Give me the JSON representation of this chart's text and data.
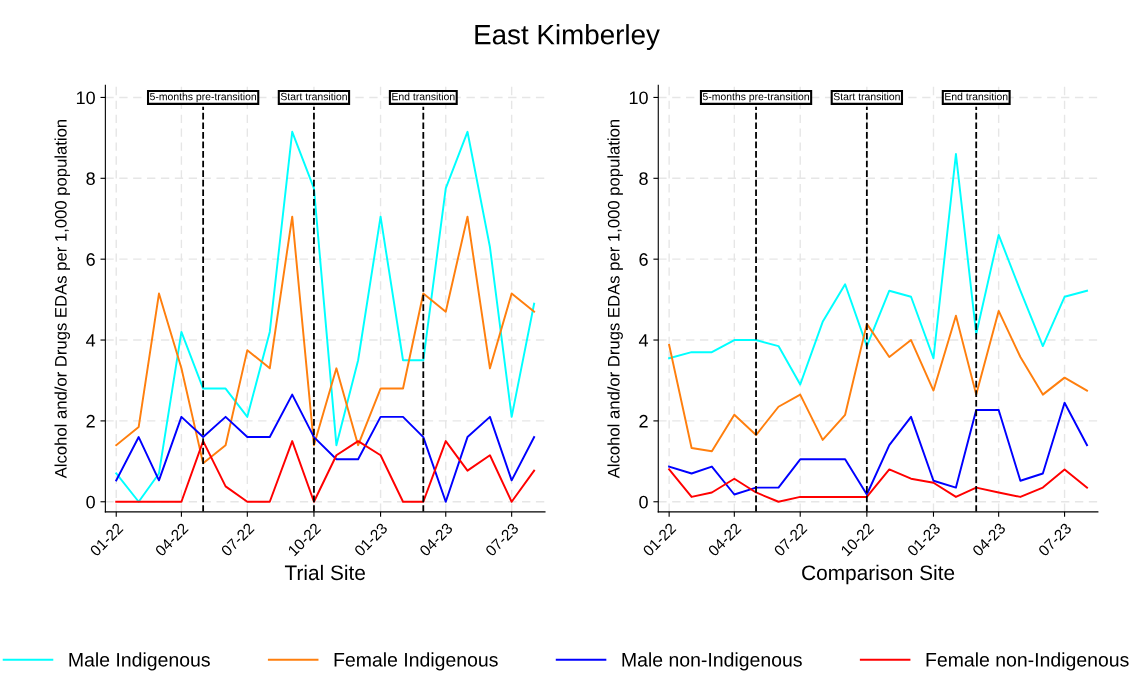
{
  "chart_data": [
    {
      "type": "line",
      "title": "East Kimberley",
      "xlabel": "Trial Site",
      "ylabel": "Alcohol and/or Drugs EDAs per 1,000 population",
      "x": [
        "2022-01",
        "2022-02",
        "2022-03",
        "2022-04",
        "2022-05",
        "2022-06",
        "2022-07",
        "2022-08",
        "2022-09",
        "2022-10",
        "2022-11",
        "2022-12",
        "2023-01",
        "2023-02",
        "2023-03",
        "2023-04",
        "2023-05",
        "2023-06",
        "2023-07",
        "2023-08"
      ],
      "series": [
        {
          "name": "Male Indigenous",
          "color": "#00ffff",
          "values": [
            0.7,
            0,
            0.7,
            4.2,
            2.8,
            2.8,
            2.1,
            4.2,
            9.15,
            7.75,
            1.4,
            3.5,
            7.05,
            3.5,
            3.5,
            7.75,
            9.15,
            6.3,
            2.1,
            4.9
          ]
        },
        {
          "name": "Female Indigenous",
          "color": "#ff7f0e",
          "values": [
            1.4,
            1.85,
            5.15,
            3.3,
            0.95,
            1.4,
            3.75,
            3.3,
            7.05,
            1.4,
            3.3,
            1.4,
            2.8,
            2.8,
            5.15,
            4.7,
            7.05,
            3.3,
            5.15,
            4.7
          ]
        },
        {
          "name": "Male non-Indigenous",
          "color": "#0000ff",
          "values": [
            0.53,
            1.6,
            0.53,
            2.1,
            1.6,
            2.1,
            1.6,
            1.6,
            2.65,
            1.6,
            1.05,
            1.05,
            2.1,
            2.1,
            1.6,
            0,
            1.6,
            2.1,
            0.53,
            1.6
          ]
        },
        {
          "name": "Female non-Indigenous",
          "color": "#ff0000",
          "values": [
            0,
            0,
            0,
            0,
            1.5,
            0.38,
            0,
            0,
            1.5,
            0,
            1.15,
            1.5,
            1.15,
            0,
            0,
            1.5,
            0.77,
            1.15,
            0,
            0.77
          ]
        }
      ],
      "xlim": [
        "2021-12-17",
        "2023-08-16"
      ],
      "xticks": [
        {
          "value": "2022-01",
          "label": "01-22"
        },
        {
          "value": "2022-04",
          "label": "04-22"
        },
        {
          "value": "2022-07",
          "label": "07-22"
        },
        {
          "value": "2022-10",
          "label": "10-22"
        },
        {
          "value": "2023-01",
          "label": "01-23"
        },
        {
          "value": "2023-04",
          "label": "04-23"
        },
        {
          "value": "2023-07",
          "label": "07-23"
        }
      ],
      "ylim": [
        -0.25,
        10.3
      ],
      "yticks": [
        0,
        2,
        4,
        6,
        8,
        10
      ],
      "ref_lines": [
        {
          "axis": "x",
          "value": "2022-05",
          "label": "5-months pre-transition",
          "color": "#000000",
          "line_style": "dashed"
        },
        {
          "axis": "x",
          "value": "2022-10",
          "label": "Start transition",
          "color": "#000000",
          "line_style": "dashed"
        },
        {
          "axis": "x",
          "value": "2023-03",
          "label": "End transition",
          "color": "#000000",
          "line_style": "dashed"
        }
      ],
      "grid": true,
      "line_style": "solid",
      "legend": "bottom"
    },
    {
      "type": "line",
      "xlabel": "Comparison Site",
      "ylabel": "Alcohol and/or Drugs EDAs per 1,000 population",
      "x": [
        "2022-01",
        "2022-02",
        "2022-03",
        "2022-04",
        "2022-05",
        "2022-06",
        "2022-07",
        "2022-08",
        "2022-09",
        "2022-10",
        "2022-11",
        "2022-12",
        "2023-01",
        "2023-02",
        "2023-03",
        "2023-04",
        "2023-05",
        "2023-06",
        "2023-07",
        "2023-08"
      ],
      "series": [
        {
          "color": "#00ffff",
          "values": [
            3.55,
            3.7,
            3.7,
            4.0,
            4.0,
            3.85,
            2.9,
            4.45,
            5.38,
            3.85,
            5.22,
            5.07,
            3.55,
            8.6,
            4.15,
            6.6,
            5.22,
            3.85,
            5.07,
            5.22
          ]
        },
        {
          "color": "#ff7f0e",
          "values": [
            3.88,
            1.33,
            1.25,
            2.15,
            1.65,
            2.35,
            2.65,
            1.53,
            2.15,
            4.4,
            3.58,
            4.0,
            2.75,
            4.6,
            2.65,
            4.72,
            3.58,
            2.65,
            3.07,
            2.75
          ]
        },
        {
          "color": "#0000ff",
          "values": [
            0.87,
            0.7,
            0.87,
            0.18,
            0.35,
            0.35,
            1.05,
            1.05,
            1.05,
            0.18,
            1.4,
            2.1,
            0.52,
            0.35,
            2.27,
            2.27,
            0.52,
            0.7,
            2.45,
            1.4
          ]
        },
        {
          "color": "#ff0000",
          "values": [
            0.8,
            0.12,
            0.23,
            0.57,
            0.23,
            0,
            0.12,
            0.12,
            0.12,
            0.12,
            0.8,
            0.57,
            0.47,
            0.12,
            0.35,
            0.23,
            0.12,
            0.35,
            0.8,
            0.35
          ]
        }
      ],
      "xlim": [
        "2021-12-17",
        "2023-08-16"
      ],
      "xticks": [
        {
          "value": "2022-01",
          "label": "01-22"
        },
        {
          "value": "2022-04",
          "label": "04-22"
        },
        {
          "value": "2022-07",
          "label": "07-22"
        },
        {
          "value": "2022-10",
          "label": "10-22"
        },
        {
          "value": "2023-01",
          "label": "01-23"
        },
        {
          "value": "2023-04",
          "label": "04-23"
        },
        {
          "value": "2023-07",
          "label": "07-23"
        }
      ],
      "ylim": [
        -0.25,
        10.3
      ],
      "yticks": [
        0,
        2,
        4,
        6,
        8,
        10
      ],
      "ref_lines": [
        {
          "axis": "x",
          "value": "2022-05",
          "label": "5-months pre-transition",
          "color": "#000000",
          "line_style": "dashed"
        },
        {
          "axis": "x",
          "value": "2022-10",
          "label": "Start transition",
          "color": "#000000",
          "line_style": "dashed"
        },
        {
          "axis": "x",
          "value": "2023-03",
          "label": "End transition",
          "color": "#000000",
          "line_style": "dashed"
        }
      ],
      "grid": true,
      "line_style": "solid"
    }
  ]
}
